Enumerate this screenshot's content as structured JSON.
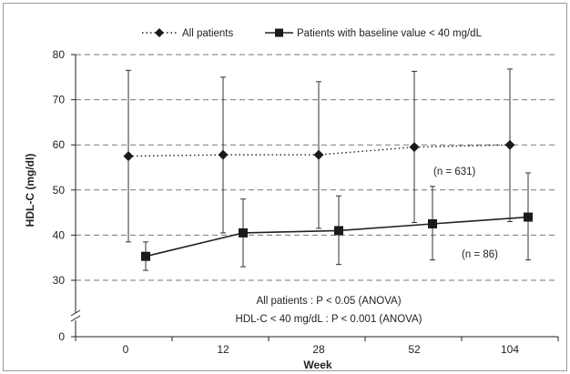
{
  "chart_data": {
    "type": "line",
    "xlabel": "Week",
    "ylabel": "HDL-C (mg/dl)",
    "categories": [
      "0",
      "12",
      "28",
      "52",
      "104"
    ],
    "y_ticks": [
      0,
      30,
      40,
      50,
      60,
      70,
      80
    ],
    "ylim": [
      0,
      80
    ],
    "axis_break": true,
    "grid": "horizontal dashed",
    "legend_position": "top",
    "series": [
      {
        "name": "All patients",
        "marker": "diamond",
        "line_style": "dotted",
        "values": [
          57.5,
          57.8,
          57.8,
          59.5,
          60.0
        ],
        "error_upper": [
          76.5,
          75.0,
          74.0,
          76.3,
          76.8
        ],
        "error_lower": [
          38.5,
          40.5,
          41.5,
          42.8,
          43.0
        ],
        "annotation": "(n = 631)"
      },
      {
        "name": "Patients with baseline value < 40 mg/dL",
        "marker": "square",
        "line_style": "solid",
        "values": [
          35.3,
          40.5,
          41.0,
          42.5,
          44.0
        ],
        "error_upper": [
          38.5,
          48.0,
          48.7,
          50.8,
          53.8
        ],
        "error_lower": [
          32.2,
          33.0,
          33.5,
          34.5,
          34.5
        ],
        "annotation": "(n = 86)"
      }
    ],
    "annotations": [
      "All patients : P < 0.05 (ANOVA)",
      "HDL-C < 40 mg/dL : P < 0.001 (ANOVA)"
    ],
    "colors": {
      "line": "#222222",
      "grid": "#777777",
      "marker": "#1a1a1a"
    }
  }
}
